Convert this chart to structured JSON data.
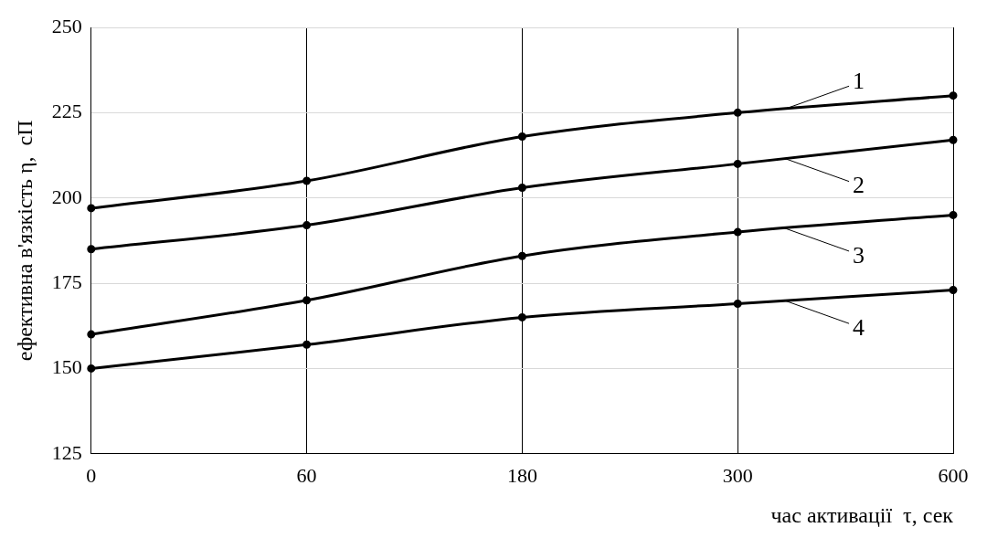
{
  "chart_data": {
    "type": "line",
    "xlabel": "час активації  τ, сек",
    "ylabel": "ефективна в'язкість η,  сП",
    "categories": [
      "0",
      "60",
      "180",
      "300",
      "600"
    ],
    "ylim": [
      125,
      250
    ],
    "yticks": [
      125,
      150,
      175,
      200,
      225,
      250
    ],
    "grid": true,
    "legend": "right",
    "marker": "circle",
    "line_style": "solid",
    "series": [
      {
        "name": "1",
        "color": "#000000",
        "values": [
          197,
          205,
          218,
          225,
          230
        ]
      },
      {
        "name": "2",
        "color": "#000000",
        "values": [
          185,
          192,
          203,
          210,
          217
        ]
      },
      {
        "name": "3",
        "color": "#000000",
        "values": [
          160,
          170,
          183,
          190,
          195
        ]
      },
      {
        "name": "4",
        "color": "#000000",
        "values": [
          150,
          157,
          165,
          169,
          173
        ]
      }
    ]
  }
}
